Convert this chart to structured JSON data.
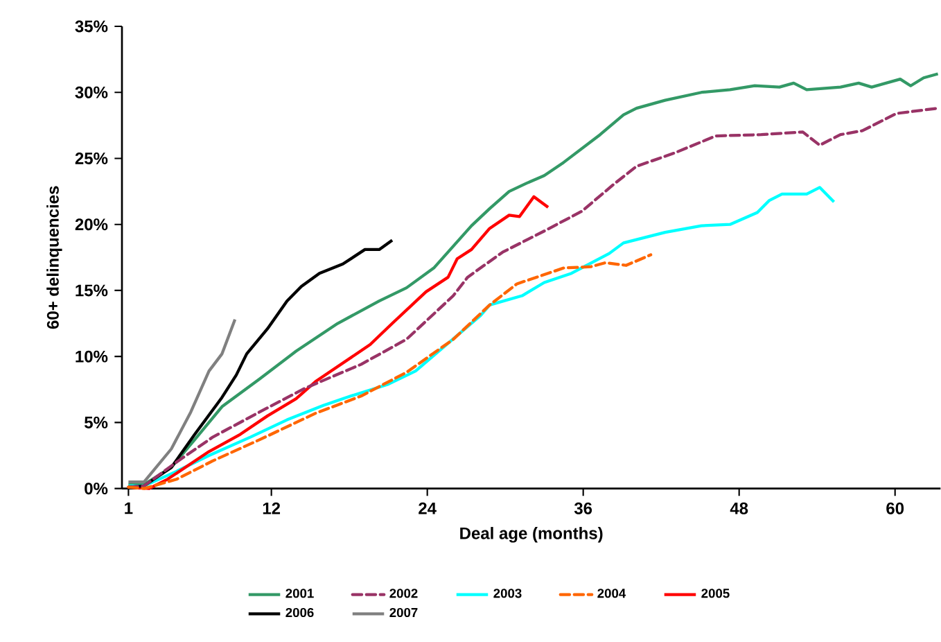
{
  "chart_data": {
    "type": "line",
    "xlabel": "Deal age (months)",
    "ylabel": "60+ delinquencies",
    "xlim": [
      0.5,
      63.5
    ],
    "xticks": [
      1,
      12,
      24,
      36,
      48,
      60
    ],
    "ylim": [
      0,
      35
    ],
    "yticks": [
      {
        "value": 0,
        "label": "0%"
      },
      {
        "value": 5,
        "label": "5%"
      },
      {
        "value": 10,
        "label": "10%"
      },
      {
        "value": 15,
        "label": "15%"
      },
      {
        "value": 20,
        "label": "20%"
      },
      {
        "value": 25,
        "label": "25%"
      },
      {
        "value": 30,
        "label": "30%"
      },
      {
        "value": 35,
        "label": "35%"
      }
    ],
    "grid": false,
    "legend": "bottom",
    "series": [
      {
        "name": "2001",
        "color": "#339966",
        "line_style": "solid",
        "x": [
          1,
          2.2,
          4.3,
          6.1,
          8.2,
          11.1,
          13.9,
          17.1,
          20.3,
          22.4,
          24.5,
          27.4,
          28.8,
          30.3,
          31.6,
          33,
          34.5,
          37.3,
          39.1,
          40.1,
          42.3,
          45.1,
          47.3,
          49.2,
          51.1,
          52.2,
          53.2,
          55.8,
          57.2,
          58.2,
          60.4,
          61.2,
          62.2,
          63.3
        ],
        "values": [
          0.3,
          0.3,
          1.6,
          3.7,
          6.2,
          8.3,
          10.4,
          12.5,
          14.2,
          15.2,
          16.7,
          19.9,
          21.2,
          22.5,
          23.1,
          23.7,
          24.7,
          26.8,
          28.3,
          28.8,
          29.4,
          30.0,
          30.2,
          30.5,
          30.4,
          30.7,
          30.2,
          30.4,
          30.7,
          30.4,
          31.0,
          30.5,
          31.1,
          31.4
        ]
      },
      {
        "name": "2002",
        "color": "#993366",
        "line_style": "dashed",
        "x": [
          1,
          2.2,
          4.7,
          7.5,
          11.1,
          14.6,
          18.9,
          22.4,
          26,
          27.1,
          29.8,
          33,
          35.9,
          38.3,
          40.1,
          43,
          46.2,
          49.7,
          52.9,
          54.2,
          55.8,
          57.5,
          60.1,
          63.3
        ],
        "values": [
          0.1,
          0.2,
          2.0,
          3.9,
          5.8,
          7.6,
          9.4,
          11.3,
          14.6,
          16.0,
          17.9,
          19.5,
          21.0,
          23.0,
          24.4,
          25.4,
          26.7,
          26.8,
          27.0,
          26.0,
          26.8,
          27.1,
          28.4,
          28.8
        ]
      },
      {
        "name": "2003",
        "color": "#00ffff",
        "line_style": "solid",
        "x": [
          1,
          2.2,
          4.7,
          7.2,
          10.4,
          13.2,
          16,
          18.1,
          21,
          23.1,
          25.6,
          28.1,
          28.8,
          31.3,
          33,
          35.1,
          38,
          39.1,
          42.3,
          45.1,
          47.3,
          49.4,
          50.3,
          51.3,
          53.2,
          54.2,
          55.3
        ],
        "values": [
          0.2,
          0.2,
          1.3,
          2.5,
          3.9,
          5.2,
          6.3,
          7.0,
          7.9,
          8.9,
          11.0,
          13.1,
          13.9,
          14.6,
          15.6,
          16.3,
          17.8,
          18.6,
          19.4,
          19.9,
          20.0,
          20.9,
          21.8,
          22.3,
          22.3,
          22.8,
          21.7
        ]
      },
      {
        "name": "2004",
        "color": "#ff6600",
        "line_style": "dashed",
        "x": [
          1,
          2.2,
          4.7,
          7.5,
          11.1,
          15.4,
          18.9,
          22.4,
          26,
          28.8,
          30.9,
          34.5,
          36.6,
          37.7,
          39.3,
          41.2
        ],
        "values": [
          0.1,
          0,
          0.7,
          2.1,
          3.7,
          5.7,
          7.0,
          8.8,
          11.3,
          13.9,
          15.5,
          16.7,
          16.8,
          17.1,
          16.9,
          17.7
        ]
      },
      {
        "name": "2005",
        "color": "#ff0000",
        "line_style": "solid",
        "x": [
          1,
          2.6,
          4,
          7.2,
          9.6,
          11.7,
          13.9,
          15.4,
          17.5,
          19.6,
          21.3,
          23.9,
          25.6,
          26.3,
          27.4,
          28.8,
          30.3,
          31.1,
          32.2,
          33.3
        ],
        "values": [
          0.1,
          0,
          0.7,
          2.8,
          4.1,
          5.5,
          6.8,
          8.1,
          9.5,
          10.9,
          12.5,
          14.9,
          16.0,
          17.4,
          18.1,
          19.7,
          20.7,
          20.6,
          22.1,
          21.3
        ]
      },
      {
        "name": "2006",
        "color": "#000000",
        "line_style": "solid",
        "x": [
          1,
          2.2,
          4.3,
          6.1,
          8.2,
          9.3,
          10.1,
          11.7,
          13.2,
          14.3,
          15.7,
          17.5,
          19.2,
          20.3,
          21.3
        ],
        "values": [
          0.1,
          0.2,
          1.6,
          4.1,
          6.9,
          8.6,
          10.2,
          12.1,
          14.2,
          15.3,
          16.3,
          17.0,
          18.1,
          18.1,
          18.8
        ]
      },
      {
        "name": "2007",
        "color": "#808080",
        "line_style": "solid",
        "x": [
          1,
          2.2,
          4.3,
          5.8,
          7.2,
          8.2,
          9.2
        ],
        "values": [
          0.5,
          0.5,
          3.0,
          5.8,
          8.9,
          10.2,
          12.8
        ]
      }
    ]
  }
}
